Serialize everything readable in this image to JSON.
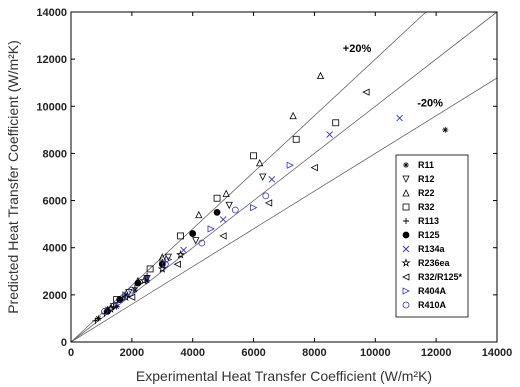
{
  "chart_data": {
    "type": "scatter",
    "title": "",
    "xlabel": "Experimental Heat Transfer Coefficient (W/m²K)",
    "ylabel": "Predicted Heat Transfer Coefficient (W/m²K)",
    "xlim": [
      0,
      14000
    ],
    "ylim": [
      0,
      14000
    ],
    "xticks": [
      "0",
      "2000",
      "4000",
      "6000",
      "8000",
      "10000",
      "12000",
      "14000"
    ],
    "yticks": [
      "0",
      "2000",
      "4000",
      "6000",
      "8000",
      "10000",
      "12000",
      "14000"
    ],
    "grid": false,
    "legend_position": "right",
    "reference_lines": [
      {
        "slope": 1.0,
        "label": ""
      },
      {
        "slope": 1.2,
        "label": "+20%"
      },
      {
        "slope": 0.8,
        "label": "-20%"
      }
    ],
    "series": [
      {
        "name": "R11",
        "marker": "asterisk",
        "color": "#000000",
        "x": [
          900,
          1200,
          1500,
          1800,
          2100,
          2500,
          12300
        ],
        "y": [
          1000,
          1400,
          1500,
          2000,
          2200,
          2600,
          9000
        ]
      },
      {
        "name": "R12",
        "marker": "triangle-down",
        "color": "#000000",
        "x": [
          1400,
          1900,
          2500,
          3200,
          4100,
          5200,
          6300
        ],
        "y": [
          1500,
          2100,
          2700,
          3600,
          4300,
          5800,
          7000
        ]
      },
      {
        "name": "R22",
        "marker": "triangle-up",
        "color": "#000000",
        "x": [
          2200,
          3000,
          4200,
          5100,
          6200,
          7300,
          8200
        ],
        "y": [
          2600,
          3600,
          5400,
          6300,
          7600,
          9600,
          11300
        ]
      },
      {
        "name": "R32",
        "marker": "square",
        "color": "#000000",
        "x": [
          1500,
          2600,
          3600,
          4800,
          6000,
          7400,
          8700
        ],
        "y": [
          1800,
          3100,
          4500,
          6100,
          7900,
          8600,
          9300
        ]
      },
      {
        "name": "R113",
        "marker": "plus",
        "color": "#000000",
        "x": [
          800,
          1100,
          1400,
          1700,
          2100,
          2500,
          3000
        ],
        "y": [
          900,
          1200,
          1500,
          1900,
          2300,
          2800,
          3400
        ]
      },
      {
        "name": "R125",
        "marker": "circle-filled",
        "color": "#000000",
        "x": [
          1200,
          1600,
          2200,
          3000,
          4000,
          4800
        ],
        "y": [
          1300,
          1800,
          2500,
          3300,
          4600,
          5500
        ]
      },
      {
        "name": "R134a",
        "marker": "x",
        "color": "#3333cc",
        "x": [
          1500,
          2500,
          3700,
          5000,
          6600,
          8500,
          10800
        ],
        "y": [
          1600,
          2700,
          3900,
          5200,
          6900,
          8800,
          9500
        ]
      },
      {
        "name": "R236ea",
        "marker": "star",
        "color": "#000000",
        "x": [
          1300,
          1800,
          2400,
          3000,
          3600
        ],
        "y": [
          1400,
          1900,
          2600,
          3100,
          3700
        ]
      },
      {
        "name": "R32/R125*",
        "marker": "triangle-left",
        "color": "#000000",
        "x": [
          2000,
          3500,
          5000,
          6500,
          8000,
          9700
        ],
        "y": [
          1900,
          3300,
          4500,
          5900,
          7400,
          10600
        ]
      },
      {
        "name": "R404A",
        "marker": "triangle-right",
        "color": "#3333cc",
        "x": [
          1800,
          3200,
          4600,
          6000,
          7200
        ],
        "y": [
          2000,
          3500,
          4800,
          5700,
          7500
        ]
      },
      {
        "name": "R410A",
        "marker": "circle",
        "color": "#3333cc",
        "x": [
          1100,
          2000,
          3100,
          4300,
          5400,
          6400
        ],
        "y": [
          1300,
          2200,
          3300,
          4200,
          5600,
          6200
        ]
      }
    ]
  }
}
